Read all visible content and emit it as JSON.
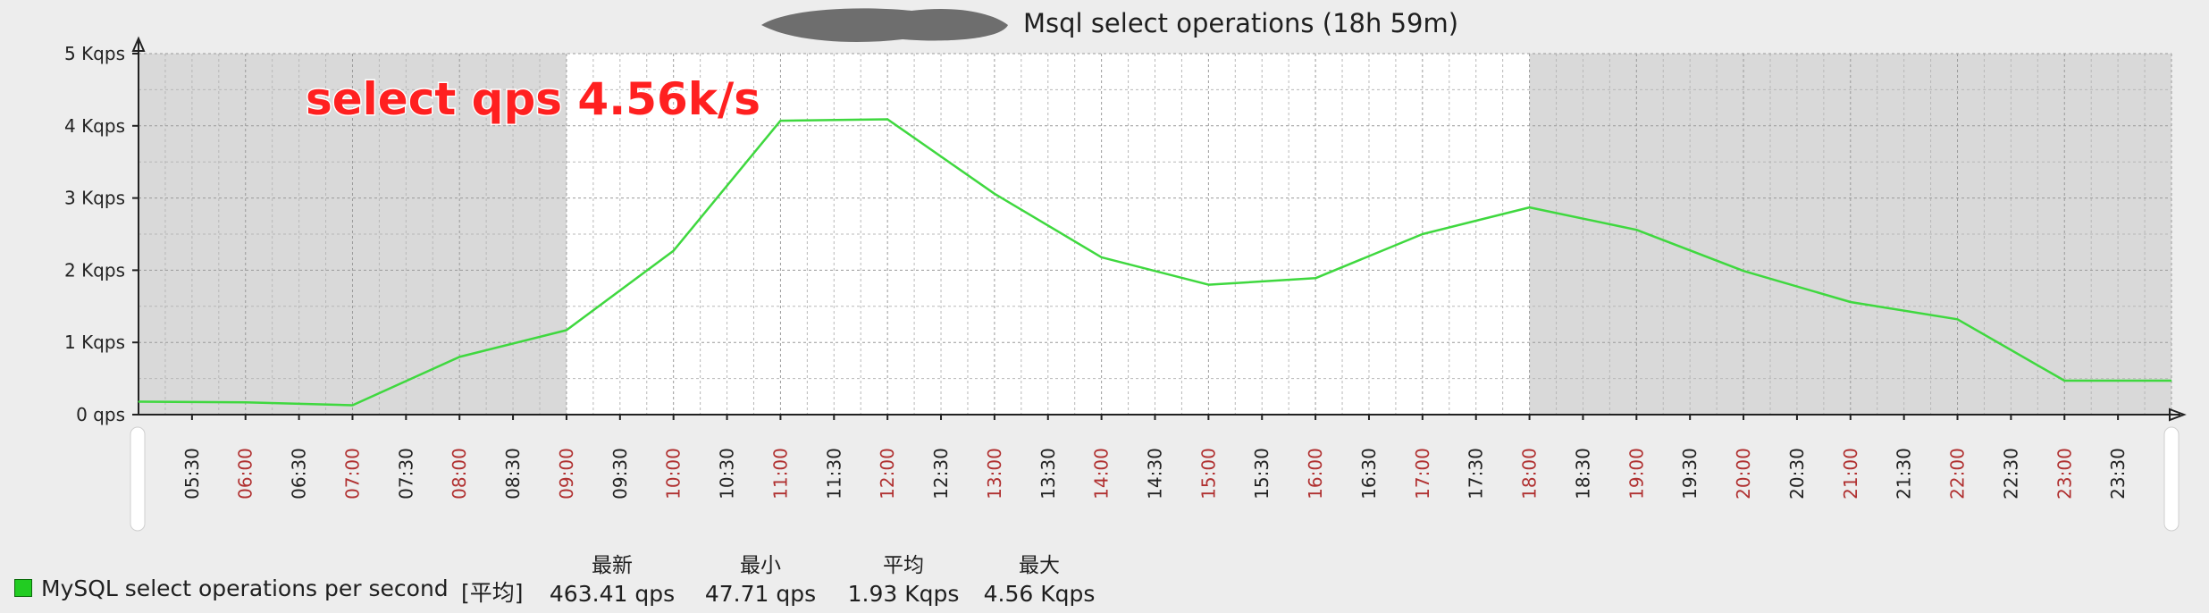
{
  "chart_data": {
    "type": "line",
    "title": "Msql select operations (18h 59m)",
    "annotation": "select qps 4.56k/s",
    "y_ticks": [
      "0 qps",
      "1 Kqps",
      "2 Kqps",
      "3 Kqps",
      "4 Kqps",
      "5 Kqps"
    ],
    "ylim": [
      0,
      5000
    ],
    "x_ticks": [
      {
        "label": "05:30",
        "major": false
      },
      {
        "label": "06:00",
        "major": true
      },
      {
        "label": "06:30",
        "major": false
      },
      {
        "label": "07:00",
        "major": true
      },
      {
        "label": "07:30",
        "major": false
      },
      {
        "label": "08:00",
        "major": true
      },
      {
        "label": "08:30",
        "major": false
      },
      {
        "label": "09:00",
        "major": true
      },
      {
        "label": "09:30",
        "major": false
      },
      {
        "label": "10:00",
        "major": true
      },
      {
        "label": "10:30",
        "major": false
      },
      {
        "label": "11:00",
        "major": true
      },
      {
        "label": "11:30",
        "major": false
      },
      {
        "label": "12:00",
        "major": true
      },
      {
        "label": "12:30",
        "major": false
      },
      {
        "label": "13:00",
        "major": true
      },
      {
        "label": "13:30",
        "major": false
      },
      {
        "label": "14:00",
        "major": true
      },
      {
        "label": "14:30",
        "major": false
      },
      {
        "label": "15:00",
        "major": true
      },
      {
        "label": "15:30",
        "major": false
      },
      {
        "label": "16:00",
        "major": true
      },
      {
        "label": "16:30",
        "major": false
      },
      {
        "label": "17:00",
        "major": true
      },
      {
        "label": "17:30",
        "major": false
      },
      {
        "label": "18:00",
        "major": true
      },
      {
        "label": "18:30",
        "major": false
      },
      {
        "label": "19:00",
        "major": true
      },
      {
        "label": "19:30",
        "major": false
      },
      {
        "label": "20:00",
        "major": true
      },
      {
        "label": "20:30",
        "major": false
      },
      {
        "label": "21:00",
        "major": true
      },
      {
        "label": "21:30",
        "major": false
      },
      {
        "label": "22:00",
        "major": true
      },
      {
        "label": "22:30",
        "major": false
      },
      {
        "label": "23:00",
        "major": true
      },
      {
        "label": "23:30",
        "major": false
      }
    ],
    "shaded_hours": [
      [
        "05:00",
        "09:00"
      ],
      [
        "18:00",
        "24:00"
      ]
    ],
    "grid": true,
    "series": [
      {
        "name": "MySQL select operations per second",
        "color": "#3fd83f",
        "x": [
          "05:00",
          "06:00",
          "07:00",
          "08:00",
          "09:00",
          "10:00",
          "11:00",
          "12:00",
          "13:00",
          "14:00",
          "15:00",
          "16:00",
          "17:00",
          "18:00",
          "19:00",
          "20:00",
          "21:00",
          "22:00",
          "23:00",
          "24:00"
        ],
        "y": [
          180,
          170,
          130,
          800,
          1170,
          2270,
          4070,
          4090,
          3060,
          2180,
          1800,
          1890,
          2500,
          2870,
          2560,
          1990,
          1560,
          1320,
          470,
          470
        ]
      }
    ]
  },
  "legend": {
    "series_name": "MySQL select operations per second",
    "function": "[平均]",
    "stats": [
      {
        "header": "最新",
        "value": "463.41 qps"
      },
      {
        "header": "最小",
        "value": "47.71 qps"
      },
      {
        "header": "平均",
        "value": "1.93 Kqps"
      },
      {
        "header": "最大",
        "value": "4.56 Kqps"
      }
    ],
    "colors": {
      "swatch": "#22cc22",
      "line": "#3fd83f",
      "major_tick_label": "#b03030"
    }
  }
}
